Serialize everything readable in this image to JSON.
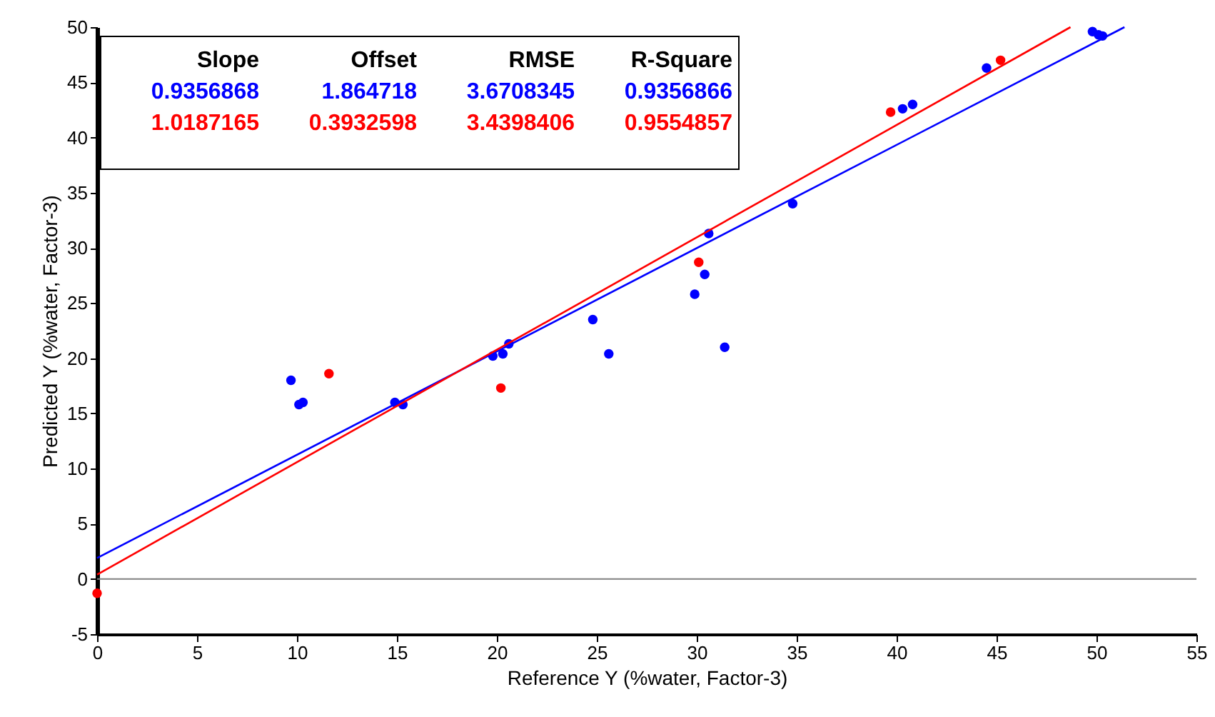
{
  "chart_data": {
    "type": "scatter",
    "xlabel": "Reference Y (%water, Factor-3)",
    "ylabel": "Predicted Y (%water, Factor-3)",
    "xlim": [
      0,
      55
    ],
    "xticks": [
      0,
      5,
      10,
      15,
      20,
      25,
      30,
      35,
      40,
      45,
      50,
      55
    ],
    "ylim": [
      -5,
      50
    ],
    "yticks": [
      -5,
      0,
      5,
      10,
      15,
      20,
      25,
      30,
      35,
      40,
      45,
      50
    ],
    "grid": false,
    "marker": "circle",
    "series": [
      {
        "color": "#0000ff",
        "x": [
          9.7,
          10.1,
          10.3,
          14.9,
          15.3,
          19.8,
          20.3,
          20.6,
          24.8,
          25.6,
          29.9,
          30.4,
          30.6,
          31.4,
          34.8,
          40.3,
          40.8,
          44.5,
          49.8,
          50.1,
          50.3
        ],
        "values": [
          18,
          15.8,
          16,
          16,
          15.8,
          20.2,
          20.4,
          21.3,
          23.5,
          20.4,
          25.8,
          27.6,
          31.3,
          21,
          34,
          42.6,
          43,
          46.3,
          49.6,
          49.3,
          49.2
        ]
      },
      {
        "color": "#ff0000",
        "x": [
          0,
          11.6,
          20.2,
          30.1,
          39.7,
          45.2
        ],
        "values": [
          -1.3,
          18.6,
          17.3,
          28.7,
          42.3,
          47
        ]
      },
      {
        "type": "line",
        "marker": "none",
        "line_style": "solid",
        "color": "#0000ff",
        "x": [
          0,
          51.4
        ],
        "values": [
          1.9,
          50
        ]
      },
      {
        "type": "line",
        "marker": "none",
        "line_style": "solid",
        "color": "#ff0000",
        "x": [
          0,
          48.7
        ],
        "values": [
          0.4,
          50
        ]
      }
    ],
    "ref_lines": [
      {
        "axis": "y",
        "value": 0,
        "color": "#808080"
      }
    ],
    "annotations": [
      "Slope",
      "Offset",
      "RMSE",
      "R-Square",
      "0.9356868",
      "1.864718",
      "3.6708345",
      "0.9356866",
      "1.0187165",
      "0.3932598",
      "3.4398406",
      "0.9554857"
    ]
  }
}
